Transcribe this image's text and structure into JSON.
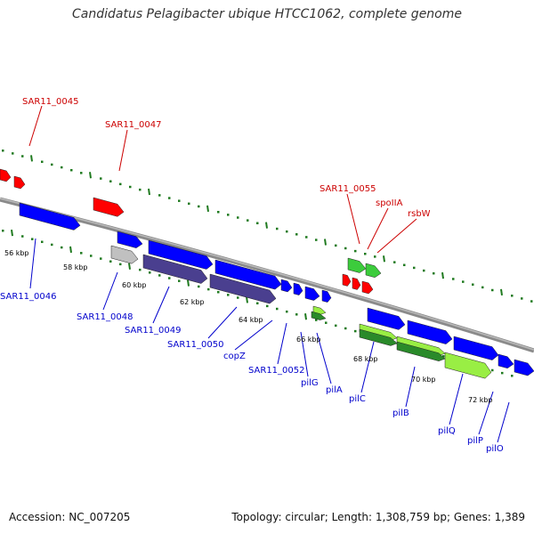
{
  "title": "Candidatus Pelagibacter ubique HTCC1062, complete genome",
  "footer": {
    "accession": "Accession: NC_007205",
    "stats": "Topology: circular; Length: 1,308,759 bp; Genes: 1,389"
  },
  "colors": {
    "backbone": "#8a8a8a",
    "tick": "#1f7a1f",
    "top_label": "#cc0000",
    "bottom_label": "#0000cc",
    "red_gene": "#ff0000",
    "blue_gene": "#0000ff",
    "purple_gene": "#4a3f8f",
    "grey_gene": "#c0c0c0",
    "green_gene": "#3ccc3c",
    "dark_green_gene": "#2a8a2a",
    "light_green_gene": "#99ee44"
  },
  "kbp_labels": [
    "56 kbp",
    "58 kbp",
    "60 kbp",
    "62 kbp",
    "64 kbp",
    "66 kbp",
    "68 kbp",
    "70 kbp",
    "72 kbp"
  ],
  "top_gene_labels": [
    "SAR11_0045",
    "SAR11_0047",
    "SAR11_0055",
    "spoIIA",
    "rsbW"
  ],
  "bottom_gene_labels": [
    "SAR11_0046",
    "SAR11_0048",
    "SAR11_0049",
    "SAR11_0050",
    "copZ",
    "SAR11_0052",
    "pilG",
    "pilA",
    "pilC",
    "pilB",
    "pilQ",
    "pilP",
    "pilO"
  ]
}
